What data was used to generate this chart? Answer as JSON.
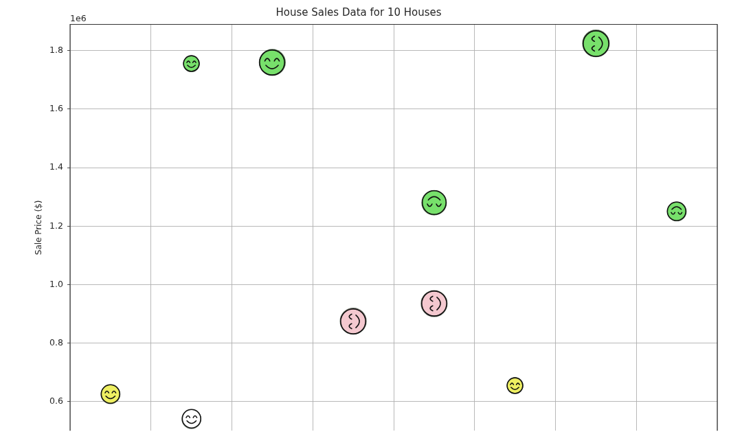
{
  "chart_data": {
    "type": "bubble",
    "title": "House Sales Data for 10 Houses",
    "ylabel": "Sale Price ($)",
    "annotations": [
      "1e6"
    ],
    "categories": [
      null,
      null,
      null,
      null,
      null,
      null,
      null,
      null
    ],
    "series": [
      {
        "values": [
          0.625,
          0.54,
          1.76,
          0.875,
          0.935,
          0.655,
          1.825,
          1.25
        ],
        "sizes": [
          0.5,
          0.5,
          0.95,
          0.95,
          0.95,
          0.35,
          1,
          0.5
        ],
        "colors": [
          "#eeef62",
          "#ffffff",
          "#77e06b",
          "#f4c8cf",
          "#f4c8cf",
          "#eeef62",
          "#77e06b",
          "#77e06b"
        ]
      },
      {
        "values": [
          null,
          1.755,
          null,
          null,
          1.28,
          null,
          null,
          null
        ],
        "sizes": [
          null,
          0.35,
          null,
          null,
          0.85,
          null,
          null,
          null
        ],
        "color": "#77e06b"
      }
    ],
    "ylim": [
      0.5,
      1.89
    ],
    "yticks": [
      0.6,
      0.8,
      {
        "value": 1,
        "label": "1.0"
      },
      1.2,
      1.4,
      1.6,
      1.8
    ],
    "grid": true,
    "tick_labels": "y",
    "marker": "circle"
  }
}
